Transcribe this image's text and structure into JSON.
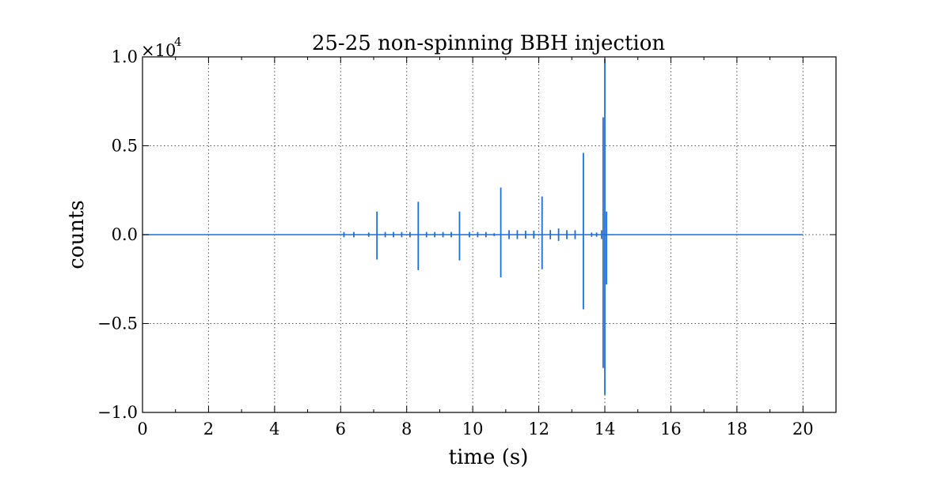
{
  "chart_data": {
    "type": "line",
    "title": "25-25 non-spinning BBH injection",
    "xlabel": "time (s)",
    "ylabel": "counts",
    "y_scale_factor_label": "×10",
    "y_scale_factor_exponent": "4",
    "xlim": [
      0,
      21
    ],
    "ylim": [
      -10000,
      10000
    ],
    "x_ticks": [
      0,
      2,
      4,
      6,
      8,
      10,
      12,
      14,
      16,
      18,
      20
    ],
    "x_tick_labels": [
      "0",
      "2",
      "4",
      "6",
      "8",
      "10",
      "12",
      "14",
      "16",
      "18",
      "20"
    ],
    "y_ticks": [
      -10000,
      -5000,
      0,
      5000,
      10000
    ],
    "y_tick_labels": [
      "−1.0",
      "−0.5",
      "0.0",
      "0.5",
      "1.0"
    ],
    "grid": true,
    "series": [
      {
        "color": "#1f6fd8",
        "baseline": {
          "x_start": 0,
          "x_end": 20,
          "y": 0
        },
        "spikes": [
          {
            "x": 6.1,
            "max": 150,
            "min": -150
          },
          {
            "x": 6.4,
            "max": 150,
            "min": -150
          },
          {
            "x": 6.85,
            "max": 120,
            "min": -120
          },
          {
            "x": 7.1,
            "max": 1300,
            "min": -1400
          },
          {
            "x": 7.35,
            "max": 150,
            "min": -150
          },
          {
            "x": 7.6,
            "max": 150,
            "min": -150
          },
          {
            "x": 7.85,
            "max": 150,
            "min": -150
          },
          {
            "x": 8.1,
            "max": 150,
            "min": -150
          },
          {
            "x": 8.35,
            "max": 1850,
            "min": -2000
          },
          {
            "x": 8.6,
            "max": 150,
            "min": -150
          },
          {
            "x": 8.85,
            "max": 150,
            "min": -150
          },
          {
            "x": 9.1,
            "max": 150,
            "min": -150
          },
          {
            "x": 9.35,
            "max": 150,
            "min": -150
          },
          {
            "x": 9.6,
            "max": 1300,
            "min": -1450
          },
          {
            "x": 9.9,
            "max": 150,
            "min": -150
          },
          {
            "x": 10.15,
            "max": 150,
            "min": -150
          },
          {
            "x": 10.4,
            "max": 150,
            "min": -150
          },
          {
            "x": 10.65,
            "max": 80,
            "min": -80
          },
          {
            "x": 10.85,
            "max": 2650,
            "min": -2400
          },
          {
            "x": 11.1,
            "max": 250,
            "min": -250
          },
          {
            "x": 11.35,
            "max": 250,
            "min": -250
          },
          {
            "x": 11.6,
            "max": 220,
            "min": -220
          },
          {
            "x": 11.85,
            "max": 220,
            "min": -220
          },
          {
            "x": 12.1,
            "max": 2150,
            "min": -1950
          },
          {
            "x": 12.35,
            "max": 260,
            "min": -260
          },
          {
            "x": 12.6,
            "max": 350,
            "min": -350
          },
          {
            "x": 12.85,
            "max": 250,
            "min": -250
          },
          {
            "x": 13.1,
            "max": 250,
            "min": -250
          },
          {
            "x": 13.35,
            "max": 4600,
            "min": -4200
          },
          {
            "x": 13.6,
            "max": 120,
            "min": -120
          },
          {
            "x": 13.75,
            "max": 120,
            "min": -120
          },
          {
            "x": 13.9,
            "max": 250,
            "min": -250
          },
          {
            "x": 13.95,
            "max": 6600,
            "min": -7500
          },
          {
            "x": 14.0,
            "max": 9900,
            "min": -9000
          },
          {
            "x": 14.05,
            "max": 1300,
            "min": -2800
          }
        ]
      }
    ]
  }
}
